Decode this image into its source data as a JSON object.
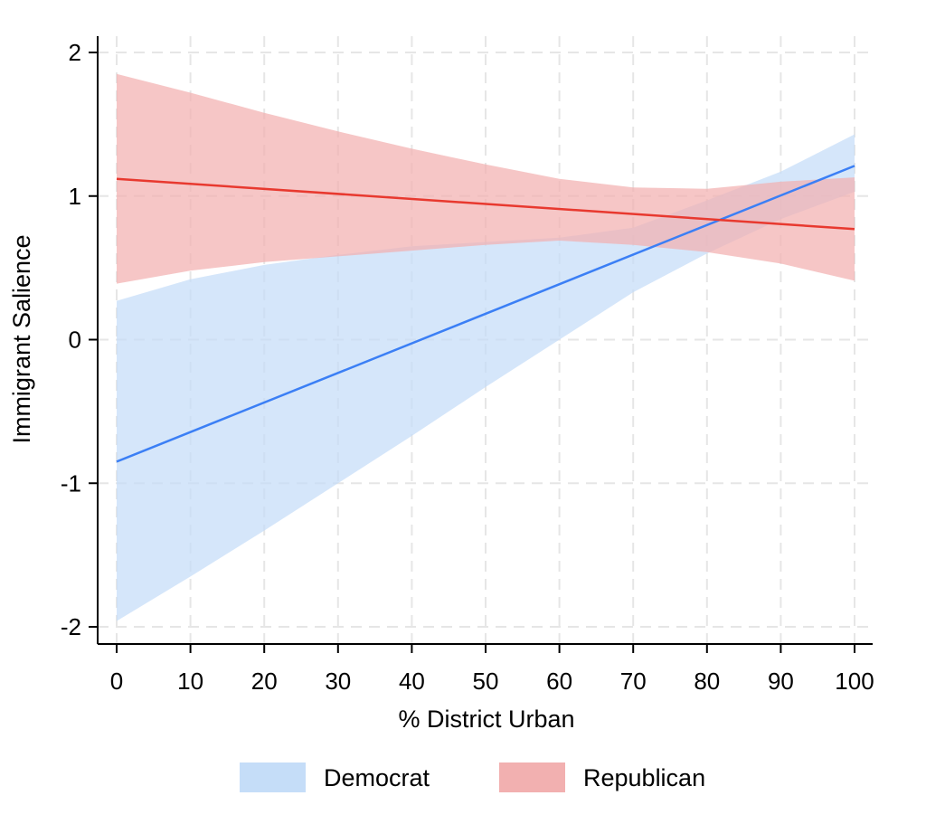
{
  "chart_data": {
    "type": "line",
    "xlabel": "% District Urban",
    "ylabel": "Immigrant Salience",
    "xlim": [
      0,
      100
    ],
    "ylim": [
      -2,
      2
    ],
    "x_ticks": [
      0,
      10,
      20,
      30,
      40,
      50,
      60,
      70,
      80,
      90,
      100
    ],
    "y_ticks": [
      -2,
      -1,
      0,
      1,
      2
    ],
    "grid": true,
    "legend_position": "bottom",
    "series": [
      {
        "name": "Democrat",
        "color": "#3b7ff5",
        "band_color": "#c5ddf8",
        "x": [
          0,
          100
        ],
        "y": [
          -0.85,
          1.21
        ],
        "band_x": [
          0,
          10,
          20,
          30,
          40,
          50,
          60,
          70,
          80,
          90,
          100
        ],
        "band_lower": [
          -1.96,
          -1.65,
          -1.33,
          -1.0,
          -0.67,
          -0.33,
          0.0,
          0.33,
          0.6,
          0.84,
          1.03
        ],
        "band_upper": [
          0.27,
          0.42,
          0.52,
          0.59,
          0.65,
          0.68,
          0.71,
          0.78,
          0.97,
          1.17,
          1.43
        ]
      },
      {
        "name": "Republican",
        "color": "#e8392f",
        "band_color": "#f2b0b0",
        "x": [
          0,
          100
        ],
        "y": [
          1.12,
          0.77
        ],
        "band_x": [
          0,
          10,
          20,
          30,
          40,
          50,
          60,
          70,
          80,
          90,
          100
        ],
        "band_lower": [
          0.39,
          0.48,
          0.54,
          0.58,
          0.62,
          0.66,
          0.69,
          0.66,
          0.61,
          0.53,
          0.41
        ],
        "band_upper": [
          1.85,
          1.72,
          1.58,
          1.45,
          1.33,
          1.22,
          1.12,
          1.06,
          1.05,
          1.1,
          1.13
        ]
      }
    ]
  }
}
